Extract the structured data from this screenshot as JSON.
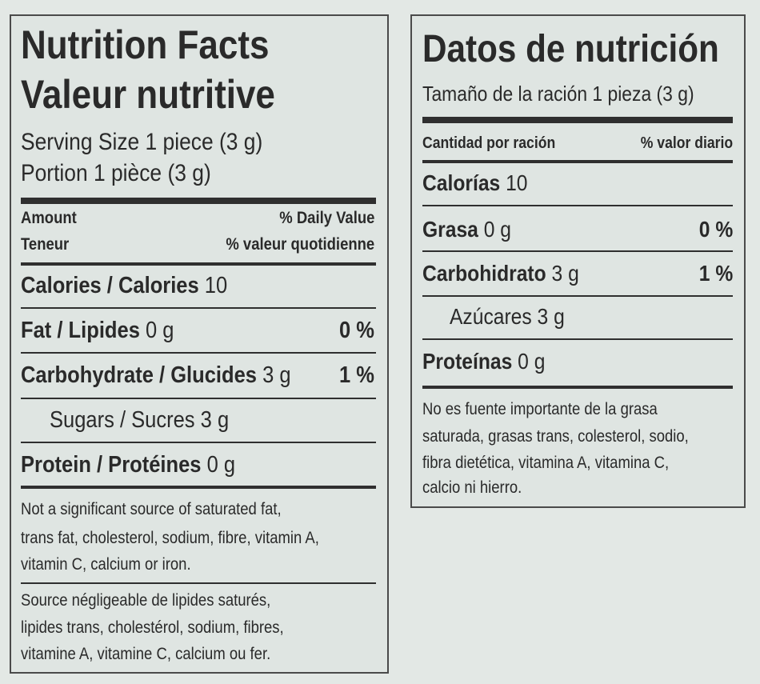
{
  "left": {
    "title": [
      "Nutrition Facts",
      "Valeur nutritive"
    ],
    "serving": [
      "Serving Size 1 piece (3 g)",
      "Portion 1 pièce (3 g)"
    ],
    "header": {
      "amount": "Amount",
      "teneur": "Teneur",
      "daily_value": "% Daily Value",
      "valeur_quotidienne": "% valeur quotidienne"
    },
    "rows": [
      {
        "label": "Calories / Calories",
        "amount": "10"
      },
      {
        "label": "Fat / Lipides",
        "amount": "0 g",
        "percent": "0 %"
      },
      {
        "label": "Carbohydrate / Glucides",
        "amount": "3 g",
        "percent": "1 %"
      },
      {
        "label": "Sugars / Sucres",
        "amount": "3 g"
      },
      {
        "label": "Protein / Protéines",
        "amount": "0 g"
      }
    ],
    "note_en": [
      "Not a significant source of saturated fat,",
      "trans fat, cholesterol, sodium, fibre, vitamin A,",
      "vitamin C, calcium or iron."
    ],
    "note_fr": [
      "Source négligeable de lipides saturés,",
      "lipides trans, cholestérol, sodium, fibres,",
      "vitamine A, vitamine C, calcium ou fer."
    ]
  },
  "right": {
    "title": "Datos de nutrición",
    "serving": "Tamaño de la ración 1 pieza (3 g)",
    "header": {
      "amount": "Cantidad por ración",
      "daily_value": "% valor diario"
    },
    "rows": [
      {
        "label": "Calorías",
        "amount": "10"
      },
      {
        "label": "Grasa",
        "amount": "0 g",
        "percent": "0 %"
      },
      {
        "label": "Carbohidrato",
        "amount": "3 g",
        "percent": "1 %"
      },
      {
        "label": "Azúcares",
        "amount": "3 g"
      },
      {
        "label": "Proteínas",
        "amount": "0 g"
      }
    ],
    "note": [
      "No es fuente importante de la grasa",
      "saturada, grasas trans, colesterol, sodio,",
      "fibra dietética, vitamina A, vitamina C,",
      "calcio ni hierro."
    ]
  }
}
